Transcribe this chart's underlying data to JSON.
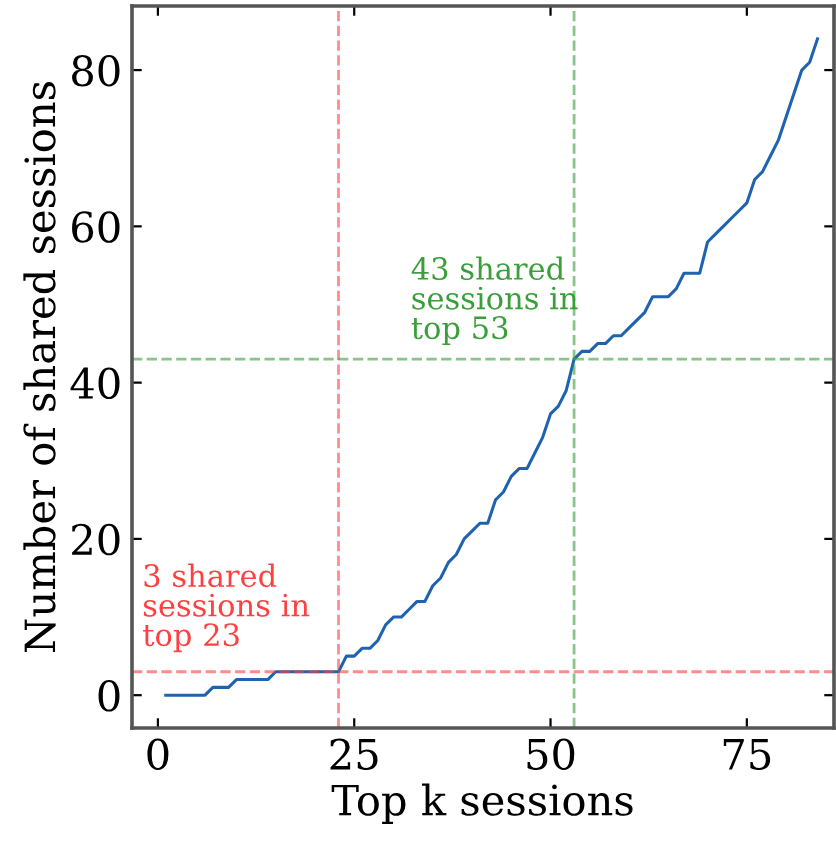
{
  "chart_data": {
    "type": "line",
    "xlabel": "Top k sessions",
    "ylabel": "Number of shared sessions",
    "x": [
      1,
      2,
      3,
      4,
      5,
      6,
      7,
      8,
      9,
      10,
      11,
      12,
      13,
      14,
      15,
      16,
      17,
      18,
      19,
      20,
      21,
      22,
      23,
      24,
      25,
      26,
      27,
      28,
      29,
      30,
      31,
      32,
      33,
      34,
      35,
      36,
      37,
      38,
      39,
      40,
      41,
      42,
      43,
      44,
      45,
      46,
      47,
      48,
      49,
      50,
      51,
      52,
      53,
      54,
      55,
      56,
      57,
      58,
      59,
      60,
      61,
      62,
      63,
      64,
      65,
      66,
      67,
      68,
      69,
      70,
      71,
      72,
      73,
      74,
      75,
      76,
      77,
      78,
      79,
      80,
      81,
      82,
      83,
      84
    ],
    "series": [
      {
        "color": "#1f63b0",
        "values": [
          0,
          0,
          0,
          0,
          0,
          0,
          1,
          1,
          1,
          2,
          2,
          2,
          2,
          2,
          3,
          3,
          3,
          3,
          3,
          3,
          3,
          3,
          3,
          5,
          5,
          6,
          6,
          7,
          9,
          10,
          10,
          11,
          12,
          12,
          14,
          15,
          17,
          18,
          20,
          21,
          22,
          22,
          25,
          26,
          28,
          29,
          29,
          31,
          33,
          36,
          37,
          39,
          43,
          44,
          44,
          45,
          45,
          46,
          46,
          47,
          48,
          49,
          51,
          51,
          51,
          52,
          54,
          54,
          54,
          58,
          59,
          60,
          61,
          62,
          63,
          66,
          67,
          69,
          71,
          74,
          77,
          80,
          81,
          84
        ]
      }
    ],
    "xlim": [
      -3.3,
      86.1
    ],
    "ylim": [
      -4.2,
      88.2
    ],
    "xticks": [
      0,
      25,
      50,
      75
    ],
    "yticks": [
      0,
      20,
      40,
      60,
      80
    ],
    "ref_lines": [
      {
        "axis": "x",
        "value": 23,
        "color": "#ff4040",
        "line_style": "dashed"
      },
      {
        "axis": "y",
        "value": 3,
        "color": "#ff4040",
        "line_style": "dashed"
      },
      {
        "axis": "x",
        "value": 53,
        "color": "#3a9e3a",
        "line_style": "dashed"
      },
      {
        "axis": "y",
        "value": 43,
        "color": "#3a9e3a",
        "line_style": "dashed"
      }
    ],
    "annotations": [
      {
        "text": "3 shared\nsessions in\ntop 23",
        "x": 23,
        "y": 3
      },
      {
        "text": "43 shared\nsessions in\ntop 53",
        "x": 53,
        "y": 43
      }
    ],
    "grid": false,
    "legend": false
  }
}
